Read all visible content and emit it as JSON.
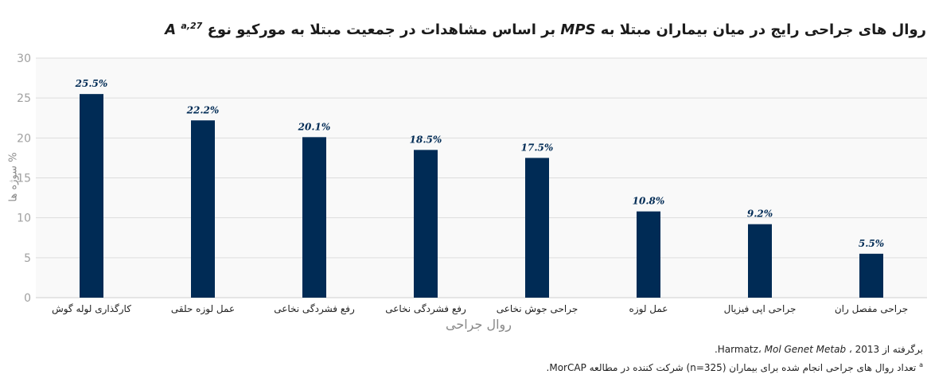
{
  "title": {
    "text": "روال های جراحی رایج در میان بیماران مبتلا به",
    "mps": "MPS",
    "text2": "بر اساس مشاهدات در جمعیت مبتلا به مورکیو نوع",
    "type": "A",
    "sup": "a,27"
  },
  "chart_data": {
    "type": "bar",
    "categories": [
      "کارگذاری لوله گوش",
      "عمل لوزه حلقی",
      "رفع فشردگی نخاعی",
      "رفع فشردگی نخاعی",
      "جراحی جوش نخاعی",
      "عمل لوزه",
      "جراحی اپی فیزیال",
      "جراحی مفصل ران"
    ],
    "values": [
      25.5,
      22.2,
      20.1,
      18.5,
      17.5,
      10.8,
      9.2,
      5.5
    ],
    "data_labels": [
      "25.5%",
      "22.2%",
      "20.1%",
      "18.5%",
      "17.5%",
      "10.8%",
      "9.2%",
      "5.5%"
    ],
    "ylim": [
      0,
      30
    ],
    "yticks": [
      0,
      5,
      10,
      15,
      20,
      25,
      30
    ],
    "xlabel": "روال جراحی",
    "ylabel": "% سوژه ها",
    "grid": true,
    "bar_color": "#002b55",
    "plot_bg": "#f9f9f9",
    "grid_color": "#dddddd"
  },
  "footnotes": {
    "line1_pre": "برگرفته از Harmatz،",
    "line1_journal": "Mol Genet Metab",
    "line1_post": "، 2013.",
    "line2_sup": "a",
    "line2": "تعداد روال های جراحی انجام شده برای بیماران (n=325) شرکت کننده در مطالعه MorCAP."
  }
}
